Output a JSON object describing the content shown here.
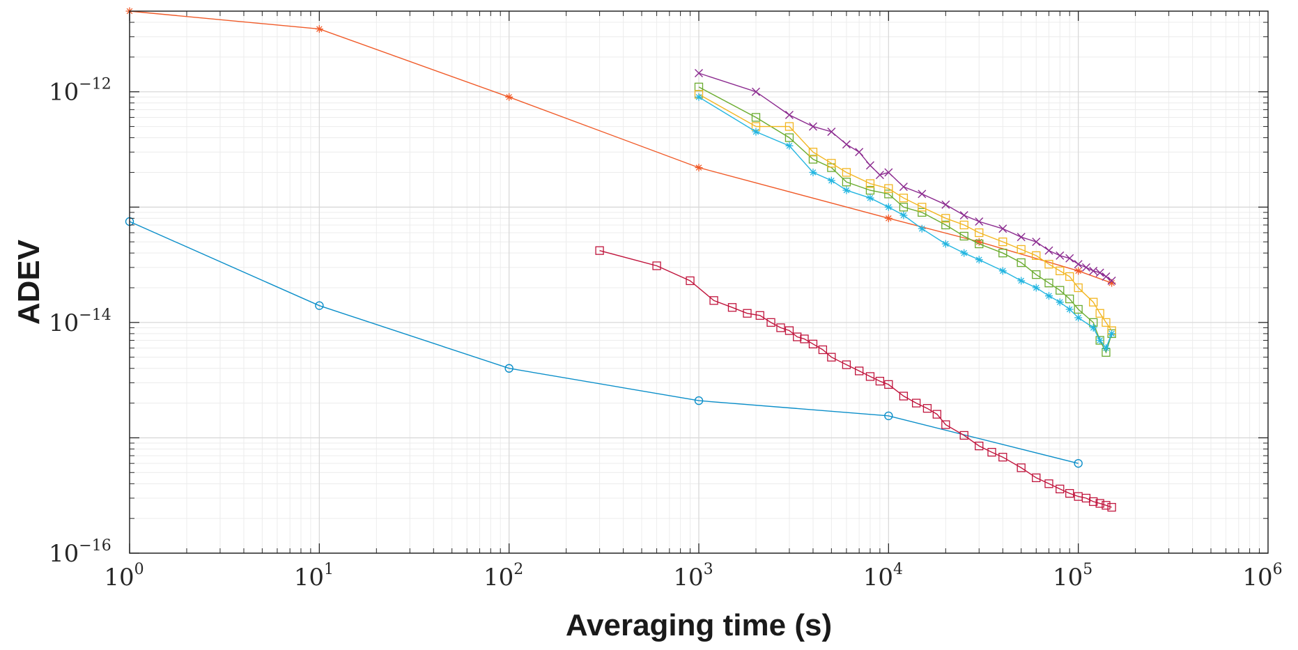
{
  "chart_data": {
    "type": "line",
    "title": "",
    "xlabel": "Averaging time (s)",
    "ylabel": "ADEV",
    "xscale": "log",
    "yscale": "log",
    "xlim": [
      1,
      1000000
    ],
    "ylim": [
      1e-16,
      5e-12
    ],
    "grid": true,
    "minor_grid": true,
    "x_tick_labels": [
      {
        "base": "10",
        "exp": "0",
        "value": 1
      },
      {
        "base": "10",
        "exp": "1",
        "value": 10
      },
      {
        "base": "10",
        "exp": "2",
        "value": 100
      },
      {
        "base": "10",
        "exp": "3",
        "value": 1000
      },
      {
        "base": "10",
        "exp": "4",
        "value": 10000
      },
      {
        "base": "10",
        "exp": "5",
        "value": 100000
      },
      {
        "base": "10",
        "exp": "6",
        "value": 1000000
      }
    ],
    "y_tick_labels": [
      {
        "base": "10",
        "exp": "−16",
        "value": 1e-16
      },
      {
        "base": "10",
        "exp": "−14",
        "value": 1e-14
      },
      {
        "base": "10",
        "exp": "−12",
        "value": 1e-12
      }
    ],
    "series": [
      {
        "name": "orange-asterisk",
        "color": "#f05a28",
        "marker": "asterisk",
        "x": [
          1,
          10,
          100,
          1000,
          10000,
          30000,
          100000,
          150000
        ],
        "y": [
          5e-12,
          3.5e-12,
          9e-13,
          2.2e-13,
          8e-14,
          5e-14,
          2.8e-14,
          2.2e-14
        ]
      },
      {
        "name": "blue-circle",
        "color": "#0a8ec9",
        "marker": "circle",
        "x": [
          1,
          10,
          100,
          1000,
          10000,
          100000
        ],
        "y": [
          7.5e-14,
          1.4e-14,
          4e-15,
          2.1e-15,
          1.55e-15,
          6e-16
        ]
      },
      {
        "name": "purple-cross",
        "color": "#8b2a8f",
        "marker": "cross",
        "x": [
          1000,
          2000,
          3000,
          4000,
          5000,
          6000,
          7000,
          8000,
          9000,
          10000,
          12000,
          15000,
          20000,
          25000,
          30000,
          40000,
          50000,
          60000,
          70000,
          80000,
          90000,
          100000,
          110000,
          120000,
          130000,
          140000,
          150000
        ],
        "y": [
          1.45e-12,
          1e-12,
          6.3e-13,
          5e-13,
          4.5e-13,
          3.5e-13,
          3e-13,
          2.3e-13,
          1.9e-13,
          2e-13,
          1.5e-13,
          1.3e-13,
          1.05e-13,
          8.5e-14,
          7.5e-14,
          6.5e-14,
          5.5e-14,
          5e-14,
          4.2e-14,
          3.8e-14,
          3.6e-14,
          3.2e-14,
          3e-14,
          2.8e-14,
          2.7e-14,
          2.5e-14,
          2.3e-14
        ]
      },
      {
        "name": "green-square",
        "color": "#6aab2e",
        "marker": "square",
        "x": [
          1000,
          2000,
          3000,
          4000,
          5000,
          6000,
          8000,
          10000,
          12000,
          15000,
          20000,
          25000,
          30000,
          40000,
          50000,
          60000,
          70000,
          80000,
          90000,
          100000,
          120000,
          130000,
          140000,
          150000
        ],
        "y": [
          1.1e-12,
          6e-13,
          4e-13,
          2.6e-13,
          2.2e-13,
          1.65e-13,
          1.4e-13,
          1.3e-13,
          1e-13,
          9e-14,
          7e-14,
          5.6e-14,
          4.8e-14,
          4e-14,
          3.3e-14,
          2.6e-14,
          2.2e-14,
          1.9e-14,
          1.6e-14,
          1.3e-14,
          1e-14,
          7e-15,
          5.5e-15,
          8e-15
        ]
      },
      {
        "name": "yellow-square",
        "color": "#f2b51f",
        "marker": "square",
        "x": [
          1000,
          2000,
          3000,
          4000,
          5000,
          6000,
          8000,
          10000,
          12000,
          15000,
          20000,
          25000,
          30000,
          40000,
          50000,
          60000,
          70000,
          80000,
          90000,
          100000,
          120000,
          130000,
          140000,
          150000
        ],
        "y": [
          9.5e-13,
          5e-13,
          5e-13,
          3e-13,
          2.4e-13,
          2e-13,
          1.6e-13,
          1.45e-13,
          1.2e-13,
          1e-13,
          8e-14,
          7e-14,
          6e-14,
          5e-14,
          4.3e-14,
          3.8e-14,
          3.2e-14,
          2.8e-14,
          2.5e-14,
          2e-14,
          1.5e-14,
          1.2e-14,
          1e-14,
          8.5e-15
        ]
      },
      {
        "name": "cyan-asterisk",
        "color": "#22b5e0",
        "marker": "asterisk",
        "x": [
          1000,
          2000,
          3000,
          4000,
          5000,
          6000,
          8000,
          10000,
          12000,
          15000,
          20000,
          25000,
          30000,
          40000,
          50000,
          60000,
          70000,
          80000,
          90000,
          100000,
          120000,
          130000,
          140000,
          150000
        ],
        "y": [
          9e-13,
          4.5e-13,
          3.4e-13,
          2e-13,
          1.7e-13,
          1.4e-13,
          1.2e-13,
          1e-13,
          8.5e-14,
          6.5e-14,
          4.8e-14,
          4e-14,
          3.5e-14,
          2.8e-14,
          2.3e-14,
          2e-14,
          1.7e-14,
          1.5e-14,
          1.3e-14,
          1.1e-14,
          9e-15,
          7e-15,
          6e-15,
          8e-15
        ]
      },
      {
        "name": "crimson-square",
        "color": "#c0143c",
        "marker": "square",
        "x": [
          300,
          600,
          900,
          1200,
          1500,
          1800,
          2100,
          2400,
          2700,
          3000,
          3300,
          3600,
          4000,
          4500,
          5000,
          6000,
          7000,
          8000,
          9000,
          10000,
          12000,
          14000,
          16000,
          18000,
          20000,
          25000,
          30000,
          35000,
          40000,
          50000,
          60000,
          70000,
          80000,
          90000,
          100000,
          110000,
          120000,
          130000,
          140000,
          150000
        ],
        "y": [
          4.2e-14,
          3.1e-14,
          2.3e-14,
          1.55e-14,
          1.35e-14,
          1.2e-14,
          1.15e-14,
          1e-14,
          9e-15,
          8.5e-15,
          7.5e-15,
          7.2e-15,
          6.5e-15,
          5.8e-15,
          5e-15,
          4.3e-15,
          3.8e-15,
          3.4e-15,
          3.1e-15,
          2.9e-15,
          2.3e-15,
          2e-15,
          1.8e-15,
          1.6e-15,
          1.3e-15,
          1.05e-15,
          8.5e-16,
          7.5e-16,
          6.8e-16,
          5.5e-16,
          4.5e-16,
          4e-16,
          3.6e-16,
          3.3e-16,
          3.1e-16,
          3e-16,
          2.8e-16,
          2.7e-16,
          2.6e-16,
          2.5e-16
        ]
      }
    ]
  }
}
